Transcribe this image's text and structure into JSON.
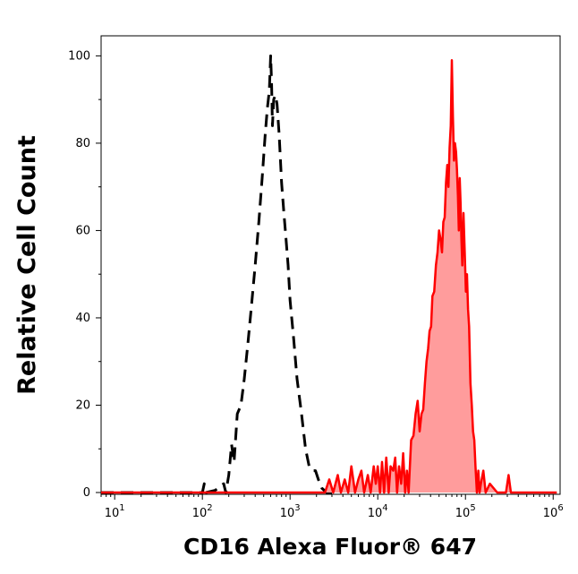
{
  "chart_data": {
    "type": "area",
    "xlabel": "CD16 Alexa Fluor® 647",
    "ylabel": "Relative Cell Count",
    "x_scale": "log10",
    "xlim": [
      7,
      1200000
    ],
    "ylim": [
      0,
      105
    ],
    "x_ticks": [
      {
        "value": 10,
        "base": "10",
        "exp": "1"
      },
      {
        "value": 100,
        "base": "10",
        "exp": "2"
      },
      {
        "value": 1000,
        "base": "10",
        "exp": "3"
      },
      {
        "value": 10000,
        "base": "10",
        "exp": "4"
      },
      {
        "value": 100000,
        "base": "10",
        "exp": "5"
      },
      {
        "value": 1000000,
        "base": "10",
        "exp": "6"
      }
    ],
    "y_ticks": [
      0,
      20,
      40,
      60,
      80,
      100
    ],
    "series": [
      {
        "style": "dashed-line",
        "color": "#000000",
        "points": [
          [
            7,
            0
          ],
          [
            60,
            0
          ],
          [
            100,
            0
          ],
          [
            105,
            2
          ],
          [
            110,
            0
          ],
          [
            140,
            0.5
          ],
          [
            160,
            1.5
          ],
          [
            175,
            2
          ],
          [
            185,
            0
          ],
          [
            200,
            4
          ],
          [
            215,
            11
          ],
          [
            230,
            7
          ],
          [
            250,
            18
          ],
          [
            275,
            20
          ],
          [
            300,
            26
          ],
          [
            330,
            34
          ],
          [
            360,
            42
          ],
          [
            400,
            52
          ],
          [
            440,
            62
          ],
          [
            480,
            72
          ],
          [
            520,
            82
          ],
          [
            550,
            88
          ],
          [
            580,
            92
          ],
          [
            600,
            100
          ],
          [
            615,
            94
          ],
          [
            630,
            84
          ],
          [
            650,
            90
          ],
          [
            680,
            91
          ],
          [
            710,
            89
          ],
          [
            750,
            82
          ],
          [
            800,
            71
          ],
          [
            850,
            64
          ],
          [
            900,
            58
          ],
          [
            950,
            52
          ],
          [
            1000,
            44
          ],
          [
            1100,
            35
          ],
          [
            1200,
            26
          ],
          [
            1350,
            18
          ],
          [
            1500,
            10
          ],
          [
            1650,
            6
          ],
          [
            1800,
            5
          ],
          [
            1950,
            5
          ],
          [
            2100,
            3
          ],
          [
            2300,
            1
          ],
          [
            2600,
            0
          ],
          [
            3000,
            0
          ]
        ]
      },
      {
        "style": "filled",
        "color": "#ff0000",
        "fill": "#ff9c9c",
        "points": [
          [
            7,
            0
          ],
          [
            2500,
            0
          ],
          [
            2800,
            3
          ],
          [
            3100,
            0
          ],
          [
            3500,
            4
          ],
          [
            3800,
            0
          ],
          [
            4200,
            3
          ],
          [
            4600,
            0
          ],
          [
            5000,
            6
          ],
          [
            5500,
            0
          ],
          [
            6000,
            3
          ],
          [
            6500,
            5
          ],
          [
            7000,
            0
          ],
          [
            7700,
            4
          ],
          [
            8300,
            0
          ],
          [
            9000,
            6
          ],
          [
            9500,
            2
          ],
          [
            10000,
            6
          ],
          [
            10600,
            0
          ],
          [
            11200,
            7
          ],
          [
            11800,
            0
          ],
          [
            12500,
            8
          ],
          [
            13300,
            0
          ],
          [
            14000,
            6
          ],
          [
            15000,
            5
          ],
          [
            15800,
            8
          ],
          [
            16600,
            0
          ],
          [
            17500,
            6
          ],
          [
            18500,
            2
          ],
          [
            19500,
            9
          ],
          [
            20500,
            0
          ],
          [
            21500,
            5
          ],
          [
            22500,
            0
          ],
          [
            24000,
            12
          ],
          [
            25500,
            13
          ],
          [
            27000,
            18
          ],
          [
            28500,
            21
          ],
          [
            30000,
            14
          ],
          [
            31500,
            18
          ],
          [
            33000,
            19
          ],
          [
            34500,
            25
          ],
          [
            36000,
            30
          ],
          [
            37500,
            33
          ],
          [
            39000,
            37
          ],
          [
            40500,
            38
          ],
          [
            42000,
            45
          ],
          [
            44000,
            46
          ],
          [
            46000,
            52
          ],
          [
            48000,
            55
          ],
          [
            50000,
            60
          ],
          [
            52000,
            58
          ],
          [
            54000,
            55
          ],
          [
            56000,
            62
          ],
          [
            58000,
            63
          ],
          [
            60000,
            71
          ],
          [
            62000,
            75
          ],
          [
            64000,
            70
          ],
          [
            66000,
            79
          ],
          [
            68000,
            84
          ],
          [
            70000,
            99
          ],
          [
            72000,
            86
          ],
          [
            74000,
            76
          ],
          [
            76000,
            80
          ],
          [
            78000,
            78
          ],
          [
            80000,
            74
          ],
          [
            82000,
            68
          ],
          [
            84000,
            60
          ],
          [
            86000,
            72
          ],
          [
            88000,
            66
          ],
          [
            90000,
            58
          ],
          [
            92000,
            52
          ],
          [
            95000,
            64
          ],
          [
            98000,
            55
          ],
          [
            101000,
            46
          ],
          [
            104000,
            50
          ],
          [
            107000,
            42
          ],
          [
            110000,
            38
          ],
          [
            114000,
            25
          ],
          [
            118000,
            20
          ],
          [
            122000,
            14
          ],
          [
            126000,
            12
          ],
          [
            130000,
            6
          ],
          [
            135000,
            0
          ],
          [
            140000,
            5
          ],
          [
            145000,
            0
          ],
          [
            150000,
            2
          ],
          [
            160000,
            5
          ],
          [
            170000,
            0
          ],
          [
            190000,
            2
          ],
          [
            230000,
            0
          ],
          [
            290000,
            0
          ],
          [
            310000,
            4
          ],
          [
            330000,
            0
          ],
          [
            1100000,
            0
          ]
        ]
      }
    ],
    "grid": false,
    "legend": "none"
  }
}
